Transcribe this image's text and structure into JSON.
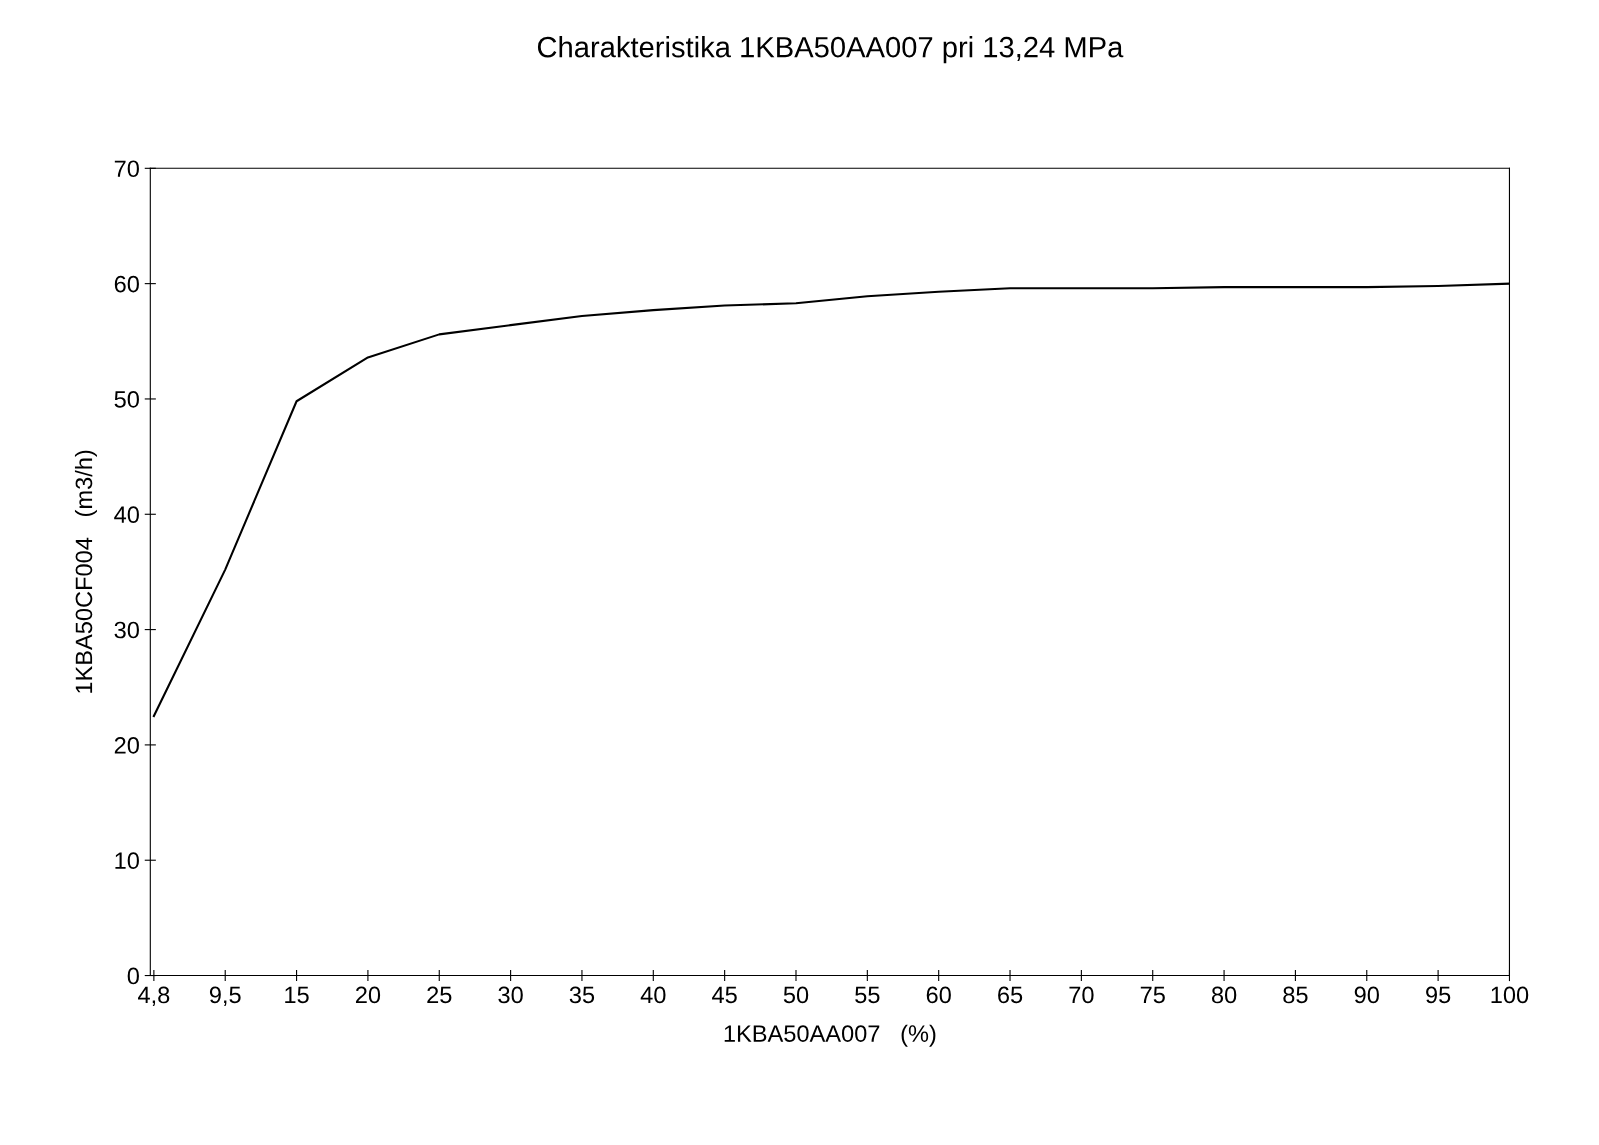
{
  "chart_data": {
    "type": "line",
    "title": "Charakteristika 1KBA50AA007 pri 13,24 MPa",
    "xlabel": "1KBA50AA007   (%)",
    "ylabel": "1KBA50CF004   (m3/h)",
    "categories": [
      "4,8",
      "9,5",
      "15",
      "20",
      "25",
      "30",
      "35",
      "40",
      "45",
      "50",
      "55",
      "60",
      "65",
      "70",
      "75",
      "80",
      "85",
      "90",
      "95",
      "100"
    ],
    "series": [
      {
        "color": "#000000",
        "values": [
          22.5,
          35.2,
          49.8,
          53.6,
          55.6,
          56.4,
          57.2,
          57.7,
          58.1,
          58.3,
          58.9,
          59.3,
          59.6,
          59.6,
          59.6,
          59.7,
          59.7,
          59.7,
          59.8,
          60.0
        ]
      }
    ],
    "ylim": [
      0,
      70
    ],
    "yticks": [
      0,
      10,
      20,
      30,
      40,
      50,
      60,
      70
    ],
    "grid": false,
    "legend": false,
    "marker": "none",
    "line_style": "solid"
  }
}
